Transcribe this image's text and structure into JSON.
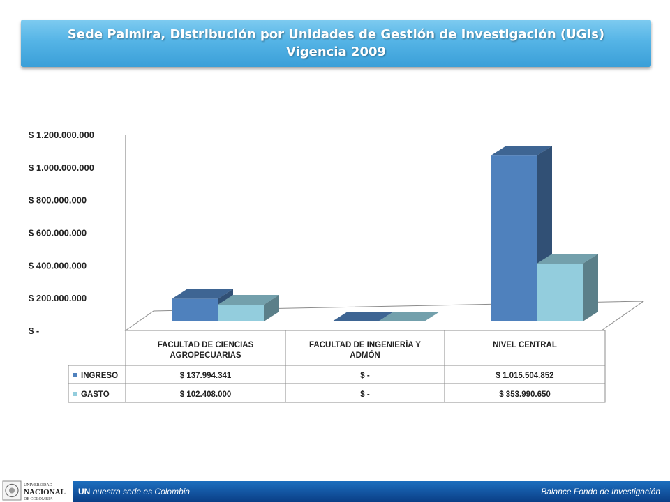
{
  "title": {
    "line1": "Sede Palmira, Distribución por Unidades de Gestión de Investigación (UGIs)",
    "line2": "Vigencia 2009"
  },
  "chart_data": {
    "type": "bar",
    "categories": [
      "FACULTAD DE CIENCIAS AGROPECUARIAS",
      "FACULTAD DE INGENIERÍA Y ADMÓN",
      "NIVEL CENTRAL"
    ],
    "category_lines": [
      [
        "FACULTAD DE CIENCIAS",
        "AGROPECUARIAS"
      ],
      [
        "FACULTAD DE INGENIERÍA Y",
        "ADMÓN"
      ],
      [
        "NIVEL CENTRAL"
      ]
    ],
    "series": [
      {
        "name": "INGRESO",
        "values": [
          137994341,
          0,
          1015504852
        ],
        "labels": [
          "$ 137.994.341",
          "$ -",
          "$ 1.015.504.852"
        ],
        "color": "#4f81bd"
      },
      {
        "name": "GASTO",
        "values": [
          102408000,
          0,
          353990650
        ],
        "labels": [
          "$ 102.408.000",
          "$ -",
          "$ 353.990.650"
        ],
        "color": "#93cddd"
      }
    ],
    "ylim": [
      0,
      1200000000
    ],
    "yticks": [
      0,
      200000000,
      400000000,
      600000000,
      800000000,
      1000000000,
      1200000000
    ],
    "ytick_labels": [
      "$ -",
      "$ 200.000.000",
      "$ 400.000.000",
      "$ 600.000.000",
      "$ 800.000.000",
      "$ 1.000.000.000",
      "$ 1.200.000.000"
    ],
    "grid": false,
    "legend": "data-table"
  },
  "footer": {
    "un": "UN",
    "slogan": "nuestra sede es Colombia",
    "right": "Balance Fondo de Investigación",
    "logo_text": [
      "UNIVERSIDAD",
      "NACIONAL",
      "DE COLOMBIA"
    ]
  }
}
